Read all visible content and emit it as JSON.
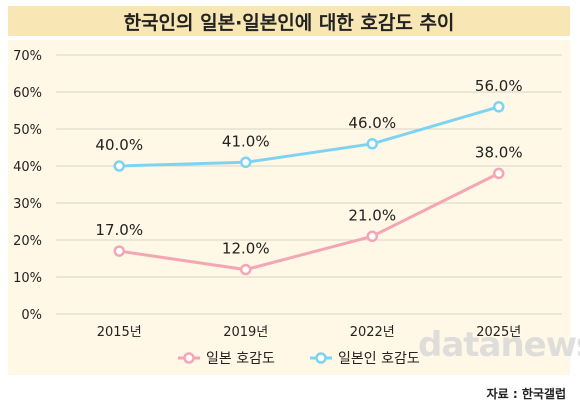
{
  "header": {
    "title": "한국인의 일본·일본인에 대한 호감도 추이"
  },
  "source": "자료 : 한국갤럽",
  "watermark": "datanews",
  "chart_data": {
    "type": "line",
    "title": "한국인의 일본·일본인에 대한 호감도 추이",
    "categories": [
      "2015년",
      "2019년",
      "2022년",
      "2025년"
    ],
    "ylim": [
      0,
      70
    ],
    "y_ticks": [
      "0%",
      "10%",
      "20%",
      "30%",
      "40%",
      "50%",
      "60%",
      "70%"
    ],
    "grid": true,
    "legend": "bottom",
    "series": [
      {
        "name": "일본 호감도",
        "values": [
          17.0,
          12.0,
          21.0,
          38.0
        ],
        "labels": [
          "17.0%",
          "12.0%",
          "21.0%",
          "38.0%"
        ],
        "color": "#f4a6b4"
      },
      {
        "name": "일본인 호감도",
        "values": [
          40.0,
          41.0,
          46.0,
          56.0
        ],
        "labels": [
          "40.0%",
          "41.0%",
          "46.0%",
          "56.0%"
        ],
        "color": "#7fd3f2"
      }
    ]
  }
}
